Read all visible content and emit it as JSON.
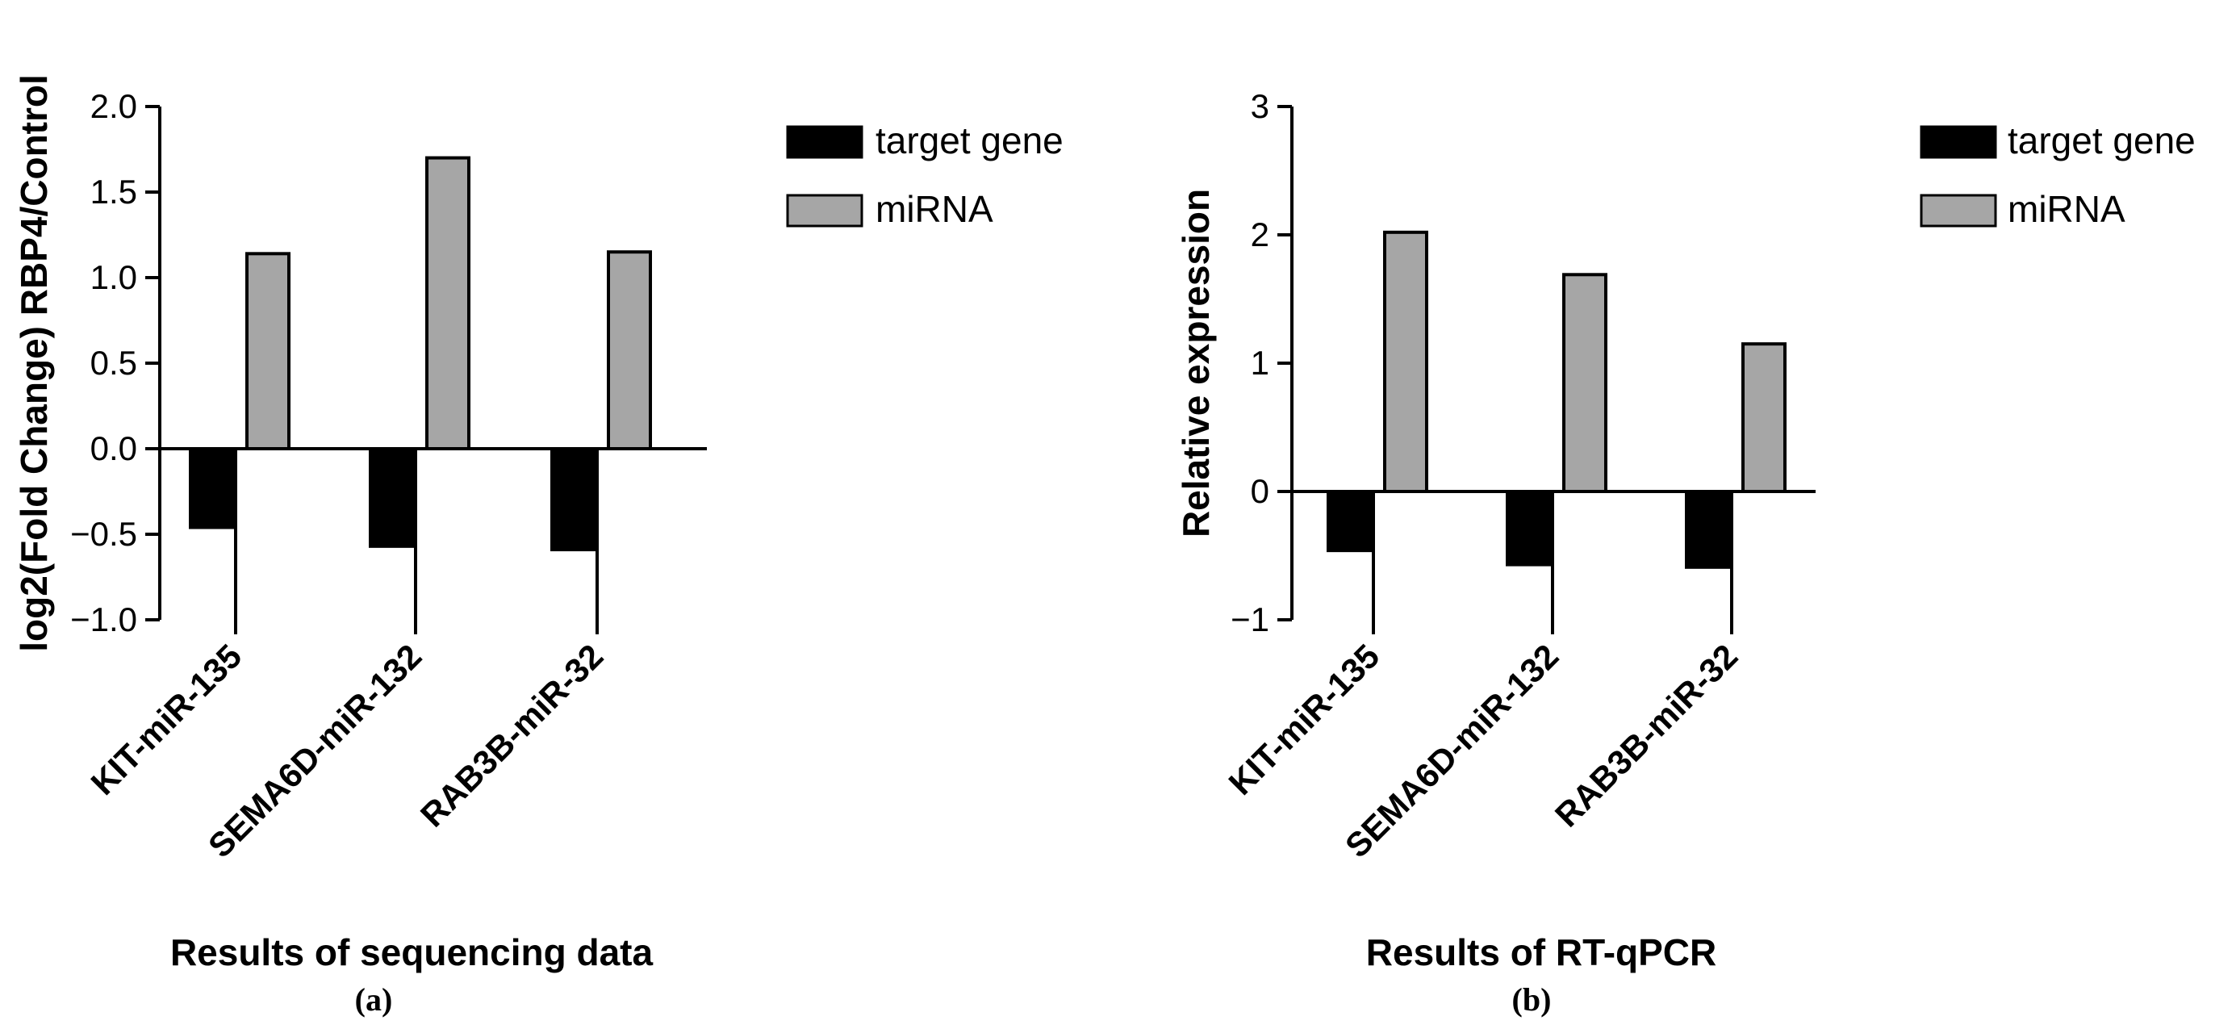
{
  "colors": {
    "target": "#000000",
    "mirna": "#a6a6a6",
    "stroke": "#000000"
  },
  "chart_data": [
    {
      "id": "a",
      "type": "bar",
      "panel_label": "(a)",
      "xlabel": "Results of sequencing data",
      "ylabel": "log2(Fold Change) RBP4/Control",
      "categories": [
        "KIT-miR-135",
        "SEMA6D-miR-132",
        "RAB3B-miR-32"
      ],
      "series": [
        {
          "name": "target gene",
          "values": [
            -0.46,
            -0.57,
            -0.59
          ]
        },
        {
          "name": "miRNA",
          "values": [
            1.14,
            1.7,
            1.15
          ]
        }
      ],
      "ylim": [
        -1.0,
        2.0
      ],
      "yticks": [
        2.0,
        1.5,
        1.0,
        0.5,
        0.0,
        -0.5,
        -1.0
      ],
      "ytick_labels": [
        "2.0",
        "1.5",
        "1.0",
        "0.5",
        "0.0",
        "−0.5",
        "−1.0"
      ],
      "grid": false,
      "legend_position": "top-right"
    },
    {
      "id": "b",
      "type": "bar",
      "panel_label": "(b)",
      "xlabel": "Results of RT-qPCR",
      "ylabel": "Relative expression",
      "categories": [
        "KIT-miR-135",
        "SEMA6D-miR-132",
        "RAB3B-miR-32"
      ],
      "series": [
        {
          "name": "target gene",
          "values": [
            -0.46,
            -0.57,
            -0.59
          ]
        },
        {
          "name": "miRNA",
          "values": [
            2.02,
            1.69,
            1.15
          ]
        }
      ],
      "ylim": [
        -1,
        3
      ],
      "yticks": [
        3,
        2,
        1,
        0,
        -1
      ],
      "ytick_labels": [
        "3",
        "2",
        "1",
        "0",
        "−1"
      ],
      "grid": false,
      "legend_position": "top-right"
    }
  ]
}
